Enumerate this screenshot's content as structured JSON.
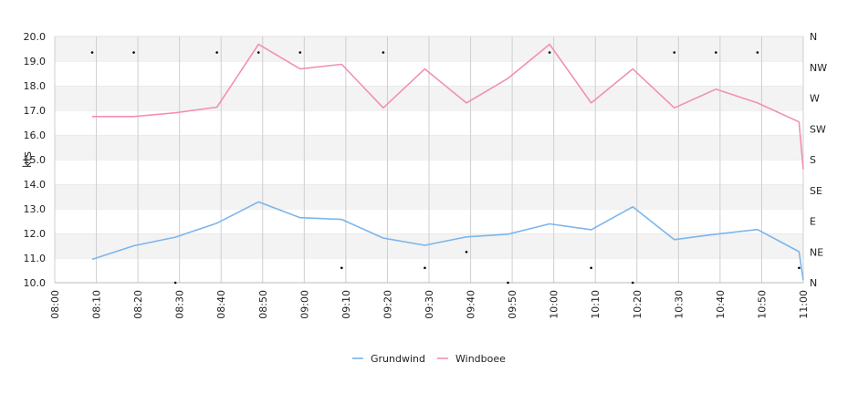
{
  "chart_data": {
    "type": "line",
    "title": "",
    "xlabel": "",
    "ylabel": "kts",
    "ylim": [
      10.0,
      20.0
    ],
    "y_ticks": [
      "10.0",
      "11.0",
      "12.0",
      "13.0",
      "14.0",
      "15.0",
      "16.0",
      "17.0",
      "18.0",
      "19.0",
      "20.0"
    ],
    "x_ticks": [
      "08:00",
      "08:10",
      "08:20",
      "08:30",
      "08:40",
      "08:50",
      "09:00",
      "09:10",
      "09:20",
      "09:30",
      "09:40",
      "09:50",
      "10:00",
      "10:10",
      "10:20",
      "10:30",
      "10:40",
      "10:50",
      "11:00"
    ],
    "right_axis_labels": [
      "N",
      "NE",
      "E",
      "SE",
      "S",
      "SW",
      "W",
      "NW",
      "N"
    ],
    "grid": true,
    "legend_position": "bottom",
    "series": [
      {
        "name": "Grundwind",
        "color": "#7cb5ec",
        "x": [
          "08:09",
          "08:19",
          "08:29",
          "08:39",
          "08:49",
          "08:59",
          "09:09",
          "09:19",
          "09:29",
          "09:39",
          "09:49",
          "09:59",
          "10:09",
          "10:19",
          "10:29",
          "10:39",
          "10:49",
          "10:59",
          "11:00"
        ],
        "values": [
          10.95,
          11.5,
          11.85,
          12.42,
          13.28,
          12.64,
          12.57,
          11.81,
          11.52,
          11.86,
          11.97,
          12.39,
          12.15,
          13.08,
          11.75,
          11.97,
          12.16,
          11.26,
          10.1
        ]
      },
      {
        "name": "Windboee",
        "color": "#f28fb8",
        "x": [
          "08:09",
          "08:19",
          "08:29",
          "08:39",
          "08:49",
          "08:59",
          "09:09",
          "09:19",
          "09:29",
          "09:39",
          "09:49",
          "09:59",
          "10:09",
          "10:19",
          "10:29",
          "10:39",
          "10:49",
          "10:59",
          "11:00"
        ],
        "values": [
          16.75,
          16.75,
          16.9,
          17.13,
          19.68,
          18.68,
          18.87,
          17.1,
          18.68,
          17.3,
          18.3,
          19.68,
          17.3,
          18.68,
          17.1,
          17.86,
          17.3,
          16.53,
          14.6
        ]
      },
      {
        "name": "",
        "color": "#000000",
        "type": "scatter",
        "x": [
          "08:09",
          "08:19",
          "08:29",
          "08:39",
          "08:49",
          "08:59",
          "09:09",
          "09:19",
          "09:29",
          "09:39",
          "09:49",
          "09:59",
          "10:09",
          "10:19",
          "10:29",
          "10:39",
          "10:49",
          "10:59"
        ],
        "values": [
          19.35,
          19.35,
          10.0,
          19.35,
          19.35,
          19.35,
          10.6,
          19.35,
          10.6,
          11.25,
          10.0,
          19.35,
          10.6,
          10.0,
          19.35,
          19.35,
          19.35,
          10.6
        ]
      }
    ]
  }
}
